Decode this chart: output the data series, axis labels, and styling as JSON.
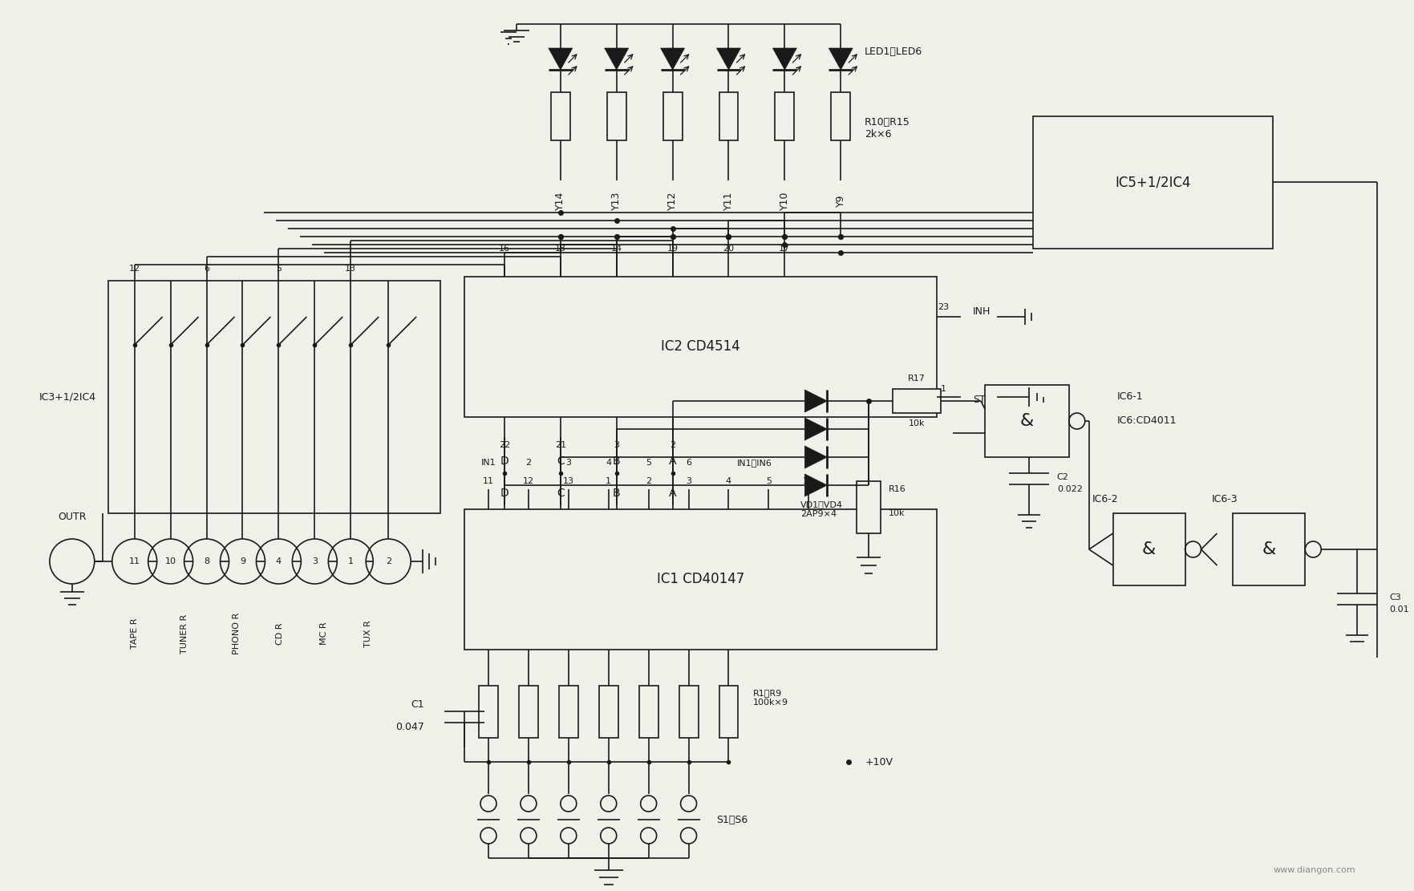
{
  "bg_color": "#f0efe8",
  "line_color": "#1a1a1a",
  "watermark": "www.diangon.com",
  "IC2_label": "IC2 CD4514",
  "IC1_label": "IC1 CD40147",
  "IC5_label": "IC5+1/2IC4",
  "IC6_label": "IC6:CD4011",
  "IC3_label": "IC3+1/2IC4",
  "LED_label": "LED1～LED6",
  "R10_15_label": "R10～R15\n2k×6",
  "R1_9_label": "R1～R9\n100k×9",
  "VD_label": "VD1～VD4\n2AP9×4",
  "IN1_6_label": "IN1～IN6",
  "S1_6_label": "S1～S6",
  "plus10V": "+10V",
  "y_labels": [
    "Y14",
    "Y13",
    "Y12",
    "Y11",
    "Y10",
    "Y9"
  ],
  "src_labels": [
    "TAPE R",
    "TUNER R",
    "PHONO R",
    "CD R",
    "MC R",
    "TUX R"
  ]
}
